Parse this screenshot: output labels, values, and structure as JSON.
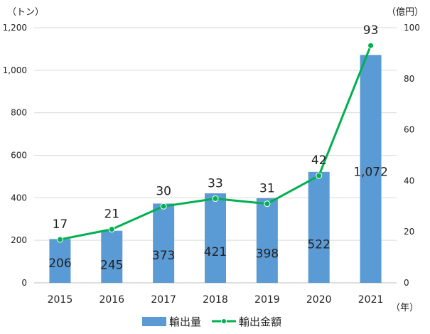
{
  "chart_data": {
    "type": "bar",
    "categories": [
      "2015",
      "2016",
      "2017",
      "2018",
      "2019",
      "2020",
      "2021"
    ],
    "series": [
      {
        "name": "輸出量",
        "type": "bar",
        "axis": "left",
        "values": [
          206,
          245,
          373,
          421,
          398,
          522,
          1072
        ],
        "labels": [
          "206",
          "245",
          "373",
          "421",
          "398",
          "522",
          "1,072"
        ],
        "color": "#5b9bd5"
      },
      {
        "name": "輸出金額",
        "type": "line",
        "axis": "right",
        "values": [
          17,
          21,
          30,
          33,
          31,
          42,
          93
        ],
        "labels": [
          "17",
          "21",
          "30",
          "33",
          "31",
          "42",
          "93"
        ],
        "color": "#00b050"
      }
    ],
    "y_left": {
      "unit_label": "（トン）",
      "range": [
        0,
        1200
      ],
      "ticks": [
        0,
        200,
        400,
        600,
        800,
        1000,
        1200
      ],
      "tick_labels": [
        "0",
        "200",
        "400",
        "600",
        "800",
        "1,000",
        "1,200"
      ]
    },
    "y_right": {
      "unit_label": "（億円）",
      "range": [
        0,
        100
      ],
      "ticks": [
        0,
        20,
        40,
        60,
        80,
        100
      ],
      "tick_labels": [
        "0",
        "20",
        "40",
        "60",
        "80",
        "100"
      ]
    },
    "x_unit_label": "（年）",
    "grid": true,
    "legend_position": "bottom"
  }
}
